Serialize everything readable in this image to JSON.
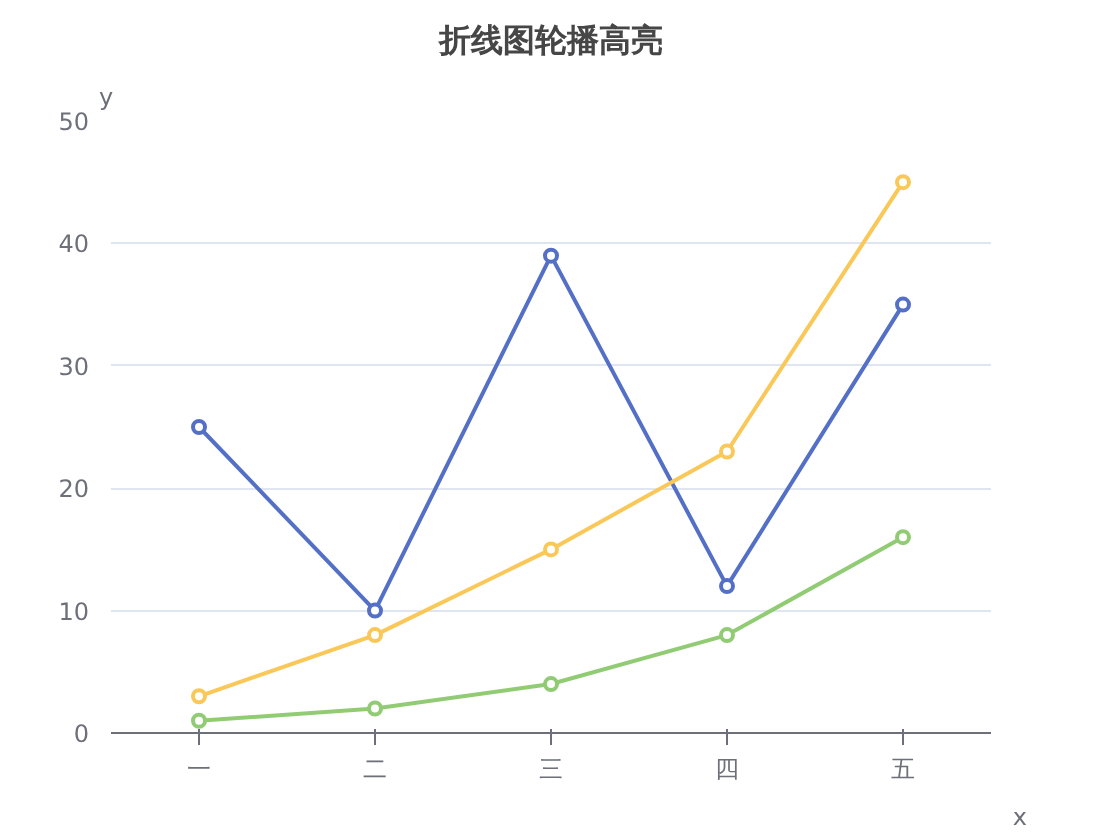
{
  "chart_data": {
    "type": "line",
    "title": "折线图轮播高亮",
    "xlabel": "x",
    "ylabel": "y",
    "categories": [
      "一",
      "二",
      "三",
      "四",
      "五"
    ],
    "series": [
      {
        "color": "#5470c6",
        "values": [
          25,
          10,
          39,
          12,
          35
        ]
      },
      {
        "color": "#fac858",
        "values": [
          3,
          8,
          15,
          23,
          45
        ]
      },
      {
        "color": "#91cc75",
        "values": [
          1,
          2,
          4,
          8,
          16
        ]
      }
    ],
    "ylim": [
      0,
      50
    ],
    "yticks": [
      0,
      10,
      20,
      30,
      40,
      50
    ],
    "grid": "y",
    "marker": "circle",
    "line_style": "solid"
  }
}
